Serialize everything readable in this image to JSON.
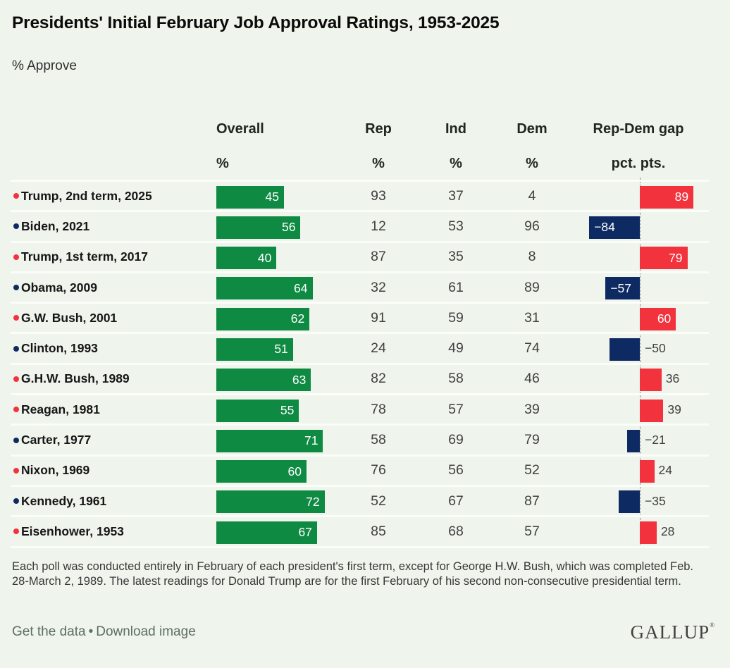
{
  "page": {
    "title": "Presidents' Initial February Job Approval Ratings, 1953-2025",
    "subtitle": "% Approve"
  },
  "table": {
    "columns": [
      {
        "label": "Overall",
        "unit": "%"
      },
      {
        "label": "Rep",
        "unit": "%"
      },
      {
        "label": "Ind",
        "unit": "%"
      },
      {
        "label": "Dem",
        "unit": "%"
      },
      {
        "label": "Rep-Dem gap",
        "unit": "pct. pts."
      }
    ]
  },
  "rows": [
    {
      "label": "Trump, 2nd term, 2025",
      "party": "rep",
      "overall": 45,
      "rep": 93,
      "ind": 37,
      "dem": 4,
      "gap": 89,
      "gap_display": "89"
    },
    {
      "label": "Biden, 2021",
      "party": "dem",
      "overall": 56,
      "rep": 12,
      "ind": 53,
      "dem": 96,
      "gap": -84,
      "gap_display": "−84"
    },
    {
      "label": "Trump, 1st term, 2017",
      "party": "rep",
      "overall": 40,
      "rep": 87,
      "ind": 35,
      "dem": 8,
      "gap": 79,
      "gap_display": "79"
    },
    {
      "label": "Obama, 2009",
      "party": "dem",
      "overall": 64,
      "rep": 32,
      "ind": 61,
      "dem": 89,
      "gap": -57,
      "gap_display": "−57"
    },
    {
      "label": "G.W. Bush, 2001",
      "party": "rep",
      "overall": 62,
      "rep": 91,
      "ind": 59,
      "dem": 31,
      "gap": 60,
      "gap_display": "60"
    },
    {
      "label": "Clinton, 1993",
      "party": "dem",
      "overall": 51,
      "rep": 24,
      "ind": 49,
      "dem": 74,
      "gap": -50,
      "gap_display": "−50"
    },
    {
      "label": "G.H.W. Bush, 1989",
      "party": "rep",
      "overall": 63,
      "rep": 82,
      "ind": 58,
      "dem": 46,
      "gap": 36,
      "gap_display": "36"
    },
    {
      "label": "Reagan, 1981",
      "party": "rep",
      "overall": 55,
      "rep": 78,
      "ind": 57,
      "dem": 39,
      "gap": 39,
      "gap_display": "39"
    },
    {
      "label": "Carter, 1977",
      "party": "dem",
      "overall": 71,
      "rep": 58,
      "ind": 69,
      "dem": 79,
      "gap": -21,
      "gap_display": "−21"
    },
    {
      "label": "Nixon, 1969",
      "party": "rep",
      "overall": 60,
      "rep": 76,
      "ind": 56,
      "dem": 52,
      "gap": 24,
      "gap_display": "24"
    },
    {
      "label": "Kennedy, 1961",
      "party": "dem",
      "overall": 72,
      "rep": 52,
      "ind": 67,
      "dem": 87,
      "gap": -35,
      "gap_display": "−35"
    },
    {
      "label": "Eisenhower, 1953",
      "party": "rep",
      "overall": 67,
      "rep": 85,
      "ind": 68,
      "dem": 57,
      "gap": 28,
      "gap_display": "28"
    }
  ],
  "chart_data": {
    "type": "bar",
    "title": "Presidents' Initial February Job Approval Ratings, 1953-2025",
    "subtitle": "% Approve",
    "orientation": "horizontal",
    "categories": [
      "Trump, 2nd term, 2025",
      "Biden, 2021",
      "Trump, 1st term, 2017",
      "Obama, 2009",
      "G.W. Bush, 2001",
      "Clinton, 1993",
      "G.H.W. Bush, 1989",
      "Reagan, 1981",
      "Carter, 1977",
      "Nixon, 1969",
      "Kennedy, 1961",
      "Eisenhower, 1953"
    ],
    "category_party": [
      "Republican",
      "Democrat",
      "Republican",
      "Democrat",
      "Republican",
      "Democrat",
      "Republican",
      "Republican",
      "Democrat",
      "Republican",
      "Democrat",
      "Republican"
    ],
    "series": [
      {
        "name": "Overall %",
        "values": [
          45,
          56,
          40,
          64,
          62,
          51,
          63,
          55,
          71,
          60,
          72,
          67
        ]
      },
      {
        "name": "Rep %",
        "values": [
          93,
          12,
          87,
          32,
          91,
          24,
          82,
          78,
          58,
          76,
          52,
          85
        ]
      },
      {
        "name": "Ind %",
        "values": [
          37,
          53,
          35,
          61,
          59,
          49,
          58,
          57,
          69,
          56,
          67,
          68
        ]
      },
      {
        "name": "Dem %",
        "values": [
          4,
          96,
          8,
          89,
          31,
          74,
          46,
          39,
          79,
          52,
          87,
          57
        ]
      },
      {
        "name": "Rep-Dem gap pct. pts.",
        "values": [
          89,
          -84,
          79,
          -57,
          60,
          -50,
          36,
          39,
          -21,
          24,
          -35,
          28
        ]
      }
    ],
    "grid": false,
    "legend": false
  },
  "footnote": "Each poll was conducted entirely in February of each president's first term, except for George H.W. Bush, which was completed Feb. 28-March 2, 1989. The latest readings for Donald Trump are for the first February of his second non-consecutive presidential term.",
  "footer": {
    "get_data_label": "Get the data",
    "separator": "•",
    "download_label": "Download image",
    "logo": "GALLUP",
    "logo_mark": "®"
  },
  "colors": {
    "approval_green": "#0f8a43",
    "republican_red": "#f2333d",
    "democrat_navy": "#0d2a63",
    "background": "#eff4ec",
    "row_separator": "#fbfdf9"
  }
}
